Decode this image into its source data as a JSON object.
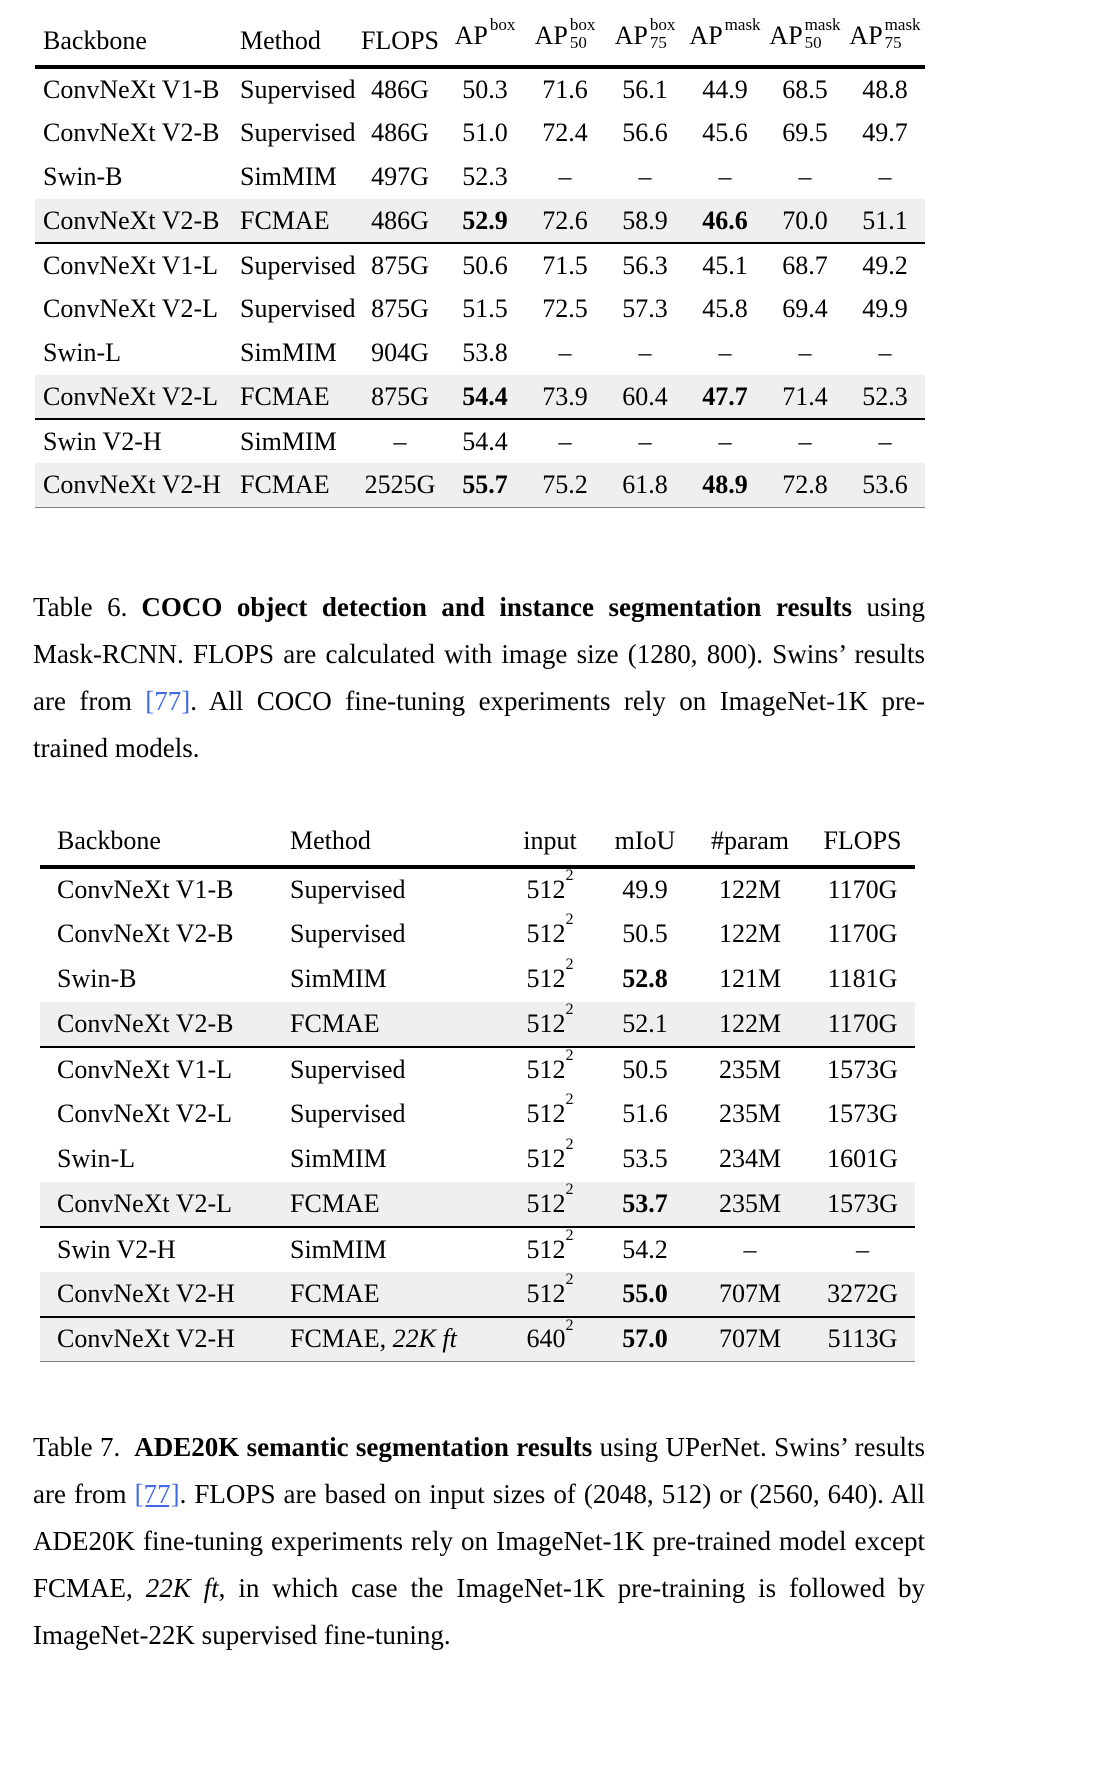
{
  "page": {
    "background": "#ffffff",
    "text_color": "#000000",
    "highlight_color": "#efefef",
    "link_color": "#4169e1"
  },
  "table6": {
    "col_names": [
      "backbone",
      "method",
      "flops",
      "ap-box",
      "ap-box-50",
      "ap-box-75",
      "ap-mask",
      "ap-mask-50",
      "ap-mask-75"
    ],
    "header": [
      {
        "t": "Backbone"
      },
      {
        "t": "Method"
      },
      {
        "t": "FLOPS"
      },
      {
        "t": "AP",
        "sup": "box"
      },
      {
        "t": "AP",
        "sup": "box",
        "sub": "50"
      },
      {
        "t": "AP",
        "sup": "box",
        "sub": "75"
      },
      {
        "t": "AP",
        "sup": "mask"
      },
      {
        "t": "AP",
        "sup": "mask",
        "sub": "50"
      },
      {
        "t": "AP",
        "sup": "mask",
        "sub": "75"
      }
    ],
    "groups": [
      {
        "rows": [
          {
            "cells": [
              {
                "t": "ConvNeXt V1-B"
              },
              {
                "t": "Supervised"
              },
              {
                "t": "486G"
              },
              {
                "t": "50.3"
              },
              {
                "t": "71.6"
              },
              {
                "t": "56.1"
              },
              {
                "t": "44.9"
              },
              {
                "t": "68.5"
              },
              {
                "t": "48.8"
              }
            ]
          },
          {
            "cells": [
              {
                "t": "ConvNeXt V2-B"
              },
              {
                "t": "Supervised"
              },
              {
                "t": "486G"
              },
              {
                "t": "51.0"
              },
              {
                "t": "72.4"
              },
              {
                "t": "56.6"
              },
              {
                "t": "45.6"
              },
              {
                "t": "69.5"
              },
              {
                "t": "49.7"
              }
            ]
          },
          {
            "cells": [
              {
                "t": "Swin-B"
              },
              {
                "t": "SimMIM"
              },
              {
                "t": "497G"
              },
              {
                "t": "52.3"
              },
              {
                "t": "–"
              },
              {
                "t": "–"
              },
              {
                "t": "–"
              },
              {
                "t": "–"
              },
              {
                "t": "–"
              }
            ]
          },
          {
            "highlight": true,
            "cells": [
              {
                "t": "ConvNeXt V2-B"
              },
              {
                "t": "FCMAE"
              },
              {
                "t": "486G"
              },
              {
                "t": "52.9",
                "b": true
              },
              {
                "t": "72.6"
              },
              {
                "t": "58.9"
              },
              {
                "t": "46.6",
                "b": true
              },
              {
                "t": "70.0"
              },
              {
                "t": "51.1"
              }
            ]
          }
        ]
      },
      {
        "rows": [
          {
            "cells": [
              {
                "t": "ConvNeXt V1-L"
              },
              {
                "t": "Supervised"
              },
              {
                "t": "875G"
              },
              {
                "t": "50.6"
              },
              {
                "t": "71.5"
              },
              {
                "t": "56.3"
              },
              {
                "t": "45.1"
              },
              {
                "t": "68.7"
              },
              {
                "t": "49.2"
              }
            ]
          },
          {
            "cells": [
              {
                "t": "ConvNeXt V2-L"
              },
              {
                "t": "Supervised"
              },
              {
                "t": "875G"
              },
              {
                "t": "51.5"
              },
              {
                "t": "72.5"
              },
              {
                "t": "57.3"
              },
              {
                "t": "45.8"
              },
              {
                "t": "69.4"
              },
              {
                "t": "49.9"
              }
            ]
          },
          {
            "cells": [
              {
                "t": "Swin-L"
              },
              {
                "t": "SimMIM"
              },
              {
                "t": "904G"
              },
              {
                "t": "53.8"
              },
              {
                "t": "–"
              },
              {
                "t": "–"
              },
              {
                "t": "–"
              },
              {
                "t": "–"
              },
              {
                "t": "–"
              }
            ]
          },
          {
            "highlight": true,
            "cells": [
              {
                "t": "ConvNeXt V2-L"
              },
              {
                "t": "FCMAE"
              },
              {
                "t": "875G"
              },
              {
                "t": "54.4",
                "b": true
              },
              {
                "t": "73.9"
              },
              {
                "t": "60.4"
              },
              {
                "t": "47.7",
                "b": true
              },
              {
                "t": "71.4"
              },
              {
                "t": "52.3"
              }
            ]
          }
        ]
      },
      {
        "rows": [
          {
            "cells": [
              {
                "t": "Swin V2-H"
              },
              {
                "t": "SimMIM"
              },
              {
                "t": "–"
              },
              {
                "t": "54.4"
              },
              {
                "t": "–"
              },
              {
                "t": "–"
              },
              {
                "t": "–"
              },
              {
                "t": "–"
              },
              {
                "t": "–"
              }
            ]
          },
          {
            "highlight": true,
            "cells": [
              {
                "t": "ConvNeXt V2-H"
              },
              {
                "t": "FCMAE"
              },
              {
                "t": "2525G"
              },
              {
                "t": "55.7",
                "b": true
              },
              {
                "t": "75.2"
              },
              {
                "t": "61.8"
              },
              {
                "t": "48.9",
                "b": true
              },
              {
                "t": "72.8"
              },
              {
                "t": "53.6"
              }
            ]
          }
        ]
      }
    ]
  },
  "caption6": {
    "segments": [
      {
        "t": "Table 6.",
        "s": "label"
      },
      {
        "t": "COCO object detection and instance segmentation results",
        "s": "bold"
      },
      {
        "t": " using Mask-RCNN. FLOPS are calculated with image size (1280, 800). Swins’ results are from ",
        "s": "normal"
      },
      {
        "t": "[77]",
        "s": "link"
      },
      {
        "t": ". All COCO fine-tuning experiments rely on ImageNet-1K pre-trained models.",
        "s": "normal"
      }
    ]
  },
  "table7": {
    "col_names": [
      "backbone",
      "method",
      "input",
      "miou",
      "param",
      "flops"
    ],
    "header": [
      {
        "t": "Backbone"
      },
      {
        "t": "Method"
      },
      {
        "t": "input"
      },
      {
        "t": "mIoU"
      },
      {
        "t": "#param"
      },
      {
        "t": "FLOPS"
      }
    ],
    "groups": [
      {
        "rows": [
          {
            "cells": [
              {
                "t": "ConvNeXt V1-B"
              },
              {
                "t": "Supervised"
              },
              {
                "t": "512",
                "sup": "2"
              },
              {
                "t": "49.9"
              },
              {
                "t": "122M"
              },
              {
                "t": "1170G"
              }
            ]
          },
          {
            "cells": [
              {
                "t": "ConvNeXt V2-B"
              },
              {
                "t": "Supervised"
              },
              {
                "t": "512",
                "sup": "2"
              },
              {
                "t": "50.5"
              },
              {
                "t": "122M"
              },
              {
                "t": "1170G"
              }
            ]
          },
          {
            "cells": [
              {
                "t": "Swin-B"
              },
              {
                "t": "SimMIM"
              },
              {
                "t": "512",
                "sup": "2"
              },
              {
                "t": "52.8",
                "b": true
              },
              {
                "t": "121M"
              },
              {
                "t": "1181G"
              }
            ]
          },
          {
            "highlight": true,
            "cells": [
              {
                "t": "ConvNeXt V2-B"
              },
              {
                "t": "FCMAE"
              },
              {
                "t": "512",
                "sup": "2"
              },
              {
                "t": "52.1"
              },
              {
                "t": "122M"
              },
              {
                "t": "1170G"
              }
            ]
          }
        ]
      },
      {
        "rows": [
          {
            "cells": [
              {
                "t": "ConvNeXt V1-L"
              },
              {
                "t": "Supervised"
              },
              {
                "t": "512",
                "sup": "2"
              },
              {
                "t": "50.5"
              },
              {
                "t": "235M"
              },
              {
                "t": "1573G"
              }
            ]
          },
          {
            "cells": [
              {
                "t": "ConvNeXt V2-L"
              },
              {
                "t": "Supervised"
              },
              {
                "t": "512",
                "sup": "2"
              },
              {
                "t": "51.6"
              },
              {
                "t": "235M"
              },
              {
                "t": "1573G"
              }
            ]
          },
          {
            "cells": [
              {
                "t": "Swin-L"
              },
              {
                "t": "SimMIM"
              },
              {
                "t": "512",
                "sup": "2"
              },
              {
                "t": "53.5"
              },
              {
                "t": "234M"
              },
              {
                "t": "1601G"
              }
            ]
          },
          {
            "highlight": true,
            "cells": [
              {
                "t": "ConvNeXt V2-L"
              },
              {
                "t": "FCMAE"
              },
              {
                "t": "512",
                "sup": "2"
              },
              {
                "t": "53.7",
                "b": true
              },
              {
                "t": "235M"
              },
              {
                "t": "1573G"
              }
            ]
          }
        ]
      },
      {
        "rows": [
          {
            "cells": [
              {
                "t": "Swin V2-H"
              },
              {
                "t": "SimMIM"
              },
              {
                "t": "512",
                "sup": "2"
              },
              {
                "t": "54.2"
              },
              {
                "t": "–"
              },
              {
                "t": "–"
              }
            ]
          },
          {
            "highlight": true,
            "cells": [
              {
                "t": "ConvNeXt V2-H"
              },
              {
                "t": "FCMAE"
              },
              {
                "t": "512",
                "sup": "2"
              },
              {
                "t": "55.0",
                "b": true
              },
              {
                "t": "707M"
              },
              {
                "t": "3272G"
              }
            ]
          }
        ]
      },
      {
        "rows": [
          {
            "highlight": true,
            "cells": [
              {
                "t": "ConvNeXt V2-H"
              },
              {
                "t": "FCMAE, ",
                "it": "22K ft"
              },
              {
                "t": "640",
                "sup": "2"
              },
              {
                "t": "57.0",
                "b": true
              },
              {
                "t": "707M"
              },
              {
                "t": "5113G"
              }
            ]
          }
        ]
      }
    ]
  },
  "caption7": {
    "segments": [
      {
        "t": "Table 7.",
        "s": "label"
      },
      {
        "t": "ADE20K semantic segmentation results",
        "s": "bold"
      },
      {
        "t": " using UPerNet. Swins’ results are from ",
        "s": "normal"
      },
      {
        "t": "[77]",
        "s": "link-underline"
      },
      {
        "t": ". FLOPS are based on input sizes of (2048, 512) or (2560, 640). All ADE20K fine-tuning experiments rely on ImageNet-1K pre-trained model except FCMAE, ",
        "s": "normal"
      },
      {
        "t": "22K ft",
        "s": "italic"
      },
      {
        "t": ", in which case the ImageNet-1K pre-training is followed by ImageNet-22K supervised fine-tuning.",
        "s": "normal"
      }
    ]
  }
}
